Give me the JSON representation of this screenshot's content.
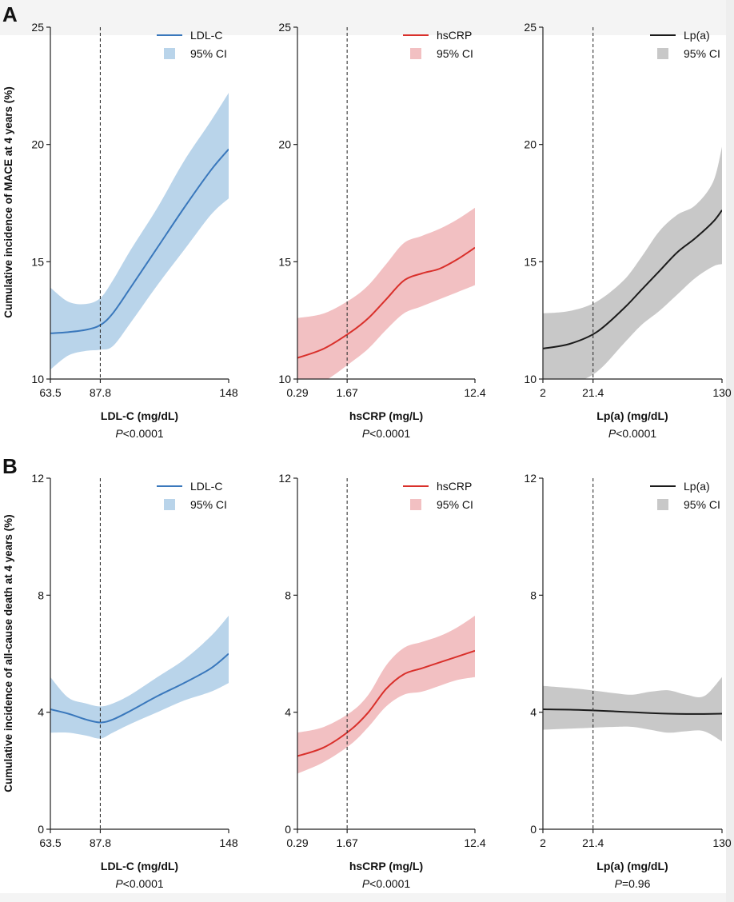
{
  "panels": [
    {
      "letter": "A",
      "ylabel": "Cumulative incidence of MACE at 4 years (%)"
    },
    {
      "letter": "B",
      "ylabel": "Cumulative incidence of all-cause death at 4 years (%)"
    }
  ],
  "ci_label": "95% CI",
  "colors": {
    "ldl": "#3a78bc",
    "ldl_ci": "#b9d4ea",
    "hscrp": "#d9302b",
    "hscrp_ci": "#f2c0c2",
    "lpa": "#1b1b1b",
    "lpa_ci": "#c8c8c8"
  },
  "chart_data": [
    {
      "type": "line",
      "panel": "A",
      "series_name": "LDL-C",
      "xlabel": "LDL-C (mg/dL)",
      "p_prefix": "P",
      "p_rest": "<0.0001",
      "xticks": [
        "63.5",
        "87.8",
        "148"
      ],
      "ylim": [
        10,
        25
      ],
      "yticks": [
        10,
        15,
        20,
        25
      ],
      "ref_line": "87.8",
      "legend": "top-right",
      "color": "ldl",
      "x": [
        0,
        0.1,
        0.2,
        0.28,
        0.35,
        0.45,
        0.6,
        0.75,
        0.9,
        1.0
      ],
      "y": [
        11.95,
        12.0,
        12.1,
        12.3,
        12.8,
        13.9,
        15.6,
        17.3,
        18.9,
        19.8
      ],
      "lower": [
        10.4,
        11.0,
        11.2,
        11.25,
        11.4,
        12.4,
        14.0,
        15.5,
        17.0,
        17.7
      ],
      "upper": [
        13.9,
        13.3,
        13.2,
        13.45,
        14.2,
        15.5,
        17.3,
        19.3,
        21.0,
        22.2
      ]
    },
    {
      "type": "line",
      "panel": "A",
      "series_name": "hsCRP",
      "xlabel": "hsCRP (mg/L)",
      "p_prefix": "P",
      "p_rest": "<0.0001",
      "xticks": [
        "0.29",
        "1.67",
        "12.4"
      ],
      "ylim": [
        10,
        25
      ],
      "yticks": [
        10,
        15,
        20,
        25
      ],
      "ref_line": "1.67",
      "legend": "top-right",
      "color": "hscrp",
      "x": [
        0,
        0.15,
        0.3,
        0.4,
        0.5,
        0.6,
        0.7,
        0.8,
        0.9,
        1.0
      ],
      "y": [
        10.9,
        11.3,
        12.0,
        12.6,
        13.4,
        14.2,
        14.5,
        14.7,
        15.1,
        15.6
      ],
      "lower": [
        9.4,
        9.9,
        10.7,
        11.3,
        12.1,
        12.8,
        13.1,
        13.4,
        13.7,
        14.0
      ],
      "upper": [
        12.6,
        12.8,
        13.4,
        14.0,
        14.9,
        15.8,
        16.1,
        16.4,
        16.8,
        17.3
      ]
    },
    {
      "type": "line",
      "panel": "A",
      "series_name": "Lp(a)",
      "xlabel": "Lp(a) (mg/dL)",
      "p_prefix": "P",
      "p_rest": "<0.0001",
      "xticks": [
        "2",
        "21.4",
        "130"
      ],
      "ylim": [
        10,
        25
      ],
      "yticks": [
        10,
        15,
        20,
        25
      ],
      "ref_line": "21.4",
      "legend": "top-right",
      "color": "lpa",
      "x": [
        0,
        0.15,
        0.3,
        0.45,
        0.55,
        0.65,
        0.75,
        0.85,
        0.95,
        1.0
      ],
      "y": [
        11.3,
        11.5,
        12.0,
        13.0,
        13.8,
        14.6,
        15.4,
        16.0,
        16.7,
        17.2
      ],
      "lower": [
        9.8,
        9.8,
        10.3,
        11.5,
        12.3,
        12.9,
        13.6,
        14.3,
        14.8,
        14.9
      ],
      "upper": [
        12.8,
        12.9,
        13.3,
        14.2,
        15.2,
        16.3,
        17.0,
        17.4,
        18.4,
        19.9
      ]
    },
    {
      "type": "line",
      "panel": "B",
      "series_name": "LDL-C",
      "xlabel": "LDL-C (mg/dL)",
      "p_prefix": "P",
      "p_rest": "<0.0001",
      "xticks": [
        "63.5",
        "87.8",
        "148"
      ],
      "ylim": [
        0,
        12
      ],
      "yticks": [
        0,
        4,
        8,
        12
      ],
      "ref_line": "87.8",
      "legend": "top-right",
      "color": "ldl",
      "x": [
        0,
        0.1,
        0.2,
        0.28,
        0.35,
        0.45,
        0.6,
        0.75,
        0.9,
        1.0
      ],
      "y": [
        4.1,
        3.95,
        3.75,
        3.65,
        3.75,
        4.05,
        4.55,
        5.0,
        5.5,
        6.0
      ],
      "lower": [
        3.3,
        3.3,
        3.2,
        3.1,
        3.3,
        3.6,
        4.0,
        4.4,
        4.7,
        5.0
      ],
      "upper": [
        5.2,
        4.5,
        4.3,
        4.2,
        4.3,
        4.6,
        5.2,
        5.8,
        6.6,
        7.3
      ]
    },
    {
      "type": "line",
      "panel": "B",
      "series_name": "hsCRP",
      "xlabel": "hsCRP (mg/L)",
      "p_prefix": "P",
      "p_rest": "<0.0001",
      "xticks": [
        "0.29",
        "1.67",
        "12.4"
      ],
      "ylim": [
        0,
        12
      ],
      "yticks": [
        0,
        4,
        8,
        12
      ],
      "ref_line": "1.67",
      "legend": "top-right",
      "color": "hscrp",
      "x": [
        0,
        0.15,
        0.3,
        0.4,
        0.5,
        0.6,
        0.7,
        0.8,
        0.9,
        1.0
      ],
      "y": [
        2.5,
        2.8,
        3.4,
        4.0,
        4.8,
        5.3,
        5.5,
        5.7,
        5.9,
        6.1
      ],
      "lower": [
        1.9,
        2.3,
        2.9,
        3.5,
        4.2,
        4.6,
        4.7,
        4.9,
        5.1,
        5.2
      ],
      "upper": [
        3.3,
        3.5,
        4.0,
        4.6,
        5.6,
        6.2,
        6.4,
        6.6,
        6.9,
        7.3
      ]
    },
    {
      "type": "line",
      "panel": "B",
      "series_name": "Lp(a)",
      "xlabel": "Lp(a) (mg/dL)",
      "p_prefix": "P",
      "p_rest": "=0.96",
      "xticks": [
        "2",
        "21.4",
        "130"
      ],
      "ylim": [
        0,
        12
      ],
      "yticks": [
        0,
        4,
        8,
        12
      ],
      "ref_line": "21.4",
      "legend": "top-right",
      "color": "lpa",
      "x": [
        0,
        0.2,
        0.4,
        0.5,
        0.6,
        0.7,
        0.8,
        0.9,
        1.0
      ],
      "y": [
        4.1,
        4.08,
        4.03,
        4.0,
        3.97,
        3.95,
        3.94,
        3.94,
        3.95
      ],
      "lower": [
        3.4,
        3.45,
        3.5,
        3.5,
        3.4,
        3.3,
        3.35,
        3.35,
        3.0
      ],
      "upper": [
        4.9,
        4.8,
        4.65,
        4.6,
        4.7,
        4.75,
        4.6,
        4.55,
        5.2
      ]
    }
  ]
}
